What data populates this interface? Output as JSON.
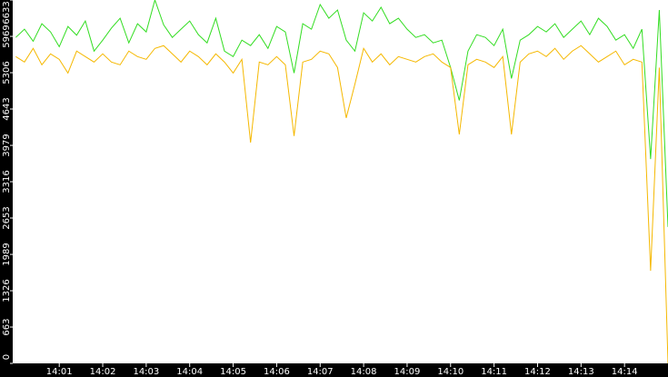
{
  "chart_data": {
    "type": "line",
    "x": [
      0,
      0.2,
      0.4,
      0.6,
      0.8,
      1,
      1.2,
      1.4,
      1.6,
      1.8,
      2,
      2.2,
      2.4,
      2.6,
      2.8,
      3,
      3.2,
      3.4,
      3.6,
      3.8,
      4,
      4.2,
      4.4,
      4.6,
      4.8,
      5,
      5.2,
      5.4,
      5.6,
      5.8,
      6,
      6.2,
      6.4,
      6.6,
      6.8,
      7,
      7.2,
      7.4,
      7.6,
      7.8,
      8,
      8.2,
      8.4,
      8.6,
      8.8,
      9,
      9.2,
      9.4,
      9.6,
      9.8,
      10,
      10.2,
      10.4,
      10.6,
      10.8,
      11,
      11.2,
      11.4,
      11.6,
      11.8,
      12,
      12.2,
      12.4,
      12.6,
      12.8,
      13,
      13.2,
      13.4,
      13.6,
      13.8,
      14,
      14.2,
      14.4,
      14.6,
      14.8,
      15
    ],
    "series": [
      {
        "color": "#33dd22",
        "values": [
          5950,
          6100,
          5880,
          6200,
          6050,
          5780,
          6150,
          5990,
          6250,
          5700,
          5900,
          6120,
          6300,
          5850,
          6200,
          6050,
          6633,
          6180,
          5950,
          6100,
          6250,
          6000,
          5850,
          6300,
          5700,
          5600,
          5900,
          5800,
          6000,
          5750,
          6150,
          6050,
          5300,
          6200,
          6100,
          6550,
          6300,
          6450,
          5900,
          5700,
          6400,
          6250,
          6500,
          6200,
          6300,
          6100,
          5950,
          6000,
          5850,
          5900,
          5400,
          4800,
          5700,
          6000,
          5950,
          5800,
          6100,
          5200,
          5900,
          6000,
          6150,
          6050,
          6200,
          5950,
          6100,
          6250,
          6000,
          6300,
          6150,
          5900,
          6000,
          5750,
          6100,
          3730,
          6450,
          2490
        ]
      },
      {
        "color": "#f5b800",
        "values": [
          5600,
          5500,
          5750,
          5450,
          5650,
          5550,
          5300,
          5700,
          5600,
          5500,
          5650,
          5500,
          5450,
          5700,
          5600,
          5550,
          5750,
          5800,
          5650,
          5500,
          5700,
          5600,
          5450,
          5650,
          5500,
          5300,
          5550,
          4030,
          5500,
          5450,
          5600,
          5450,
          4150,
          5500,
          5550,
          5700,
          5650,
          5400,
          4480,
          5100,
          5750,
          5500,
          5650,
          5450,
          5600,
          5550,
          5500,
          5600,
          5650,
          5500,
          5400,
          4180,
          5450,
          5550,
          5500,
          5400,
          5600,
          4180,
          5500,
          5650,
          5700,
          5600,
          5750,
          5550,
          5700,
          5800,
          5650,
          5500,
          5600,
          5700,
          5450,
          5550,
          5500,
          1690,
          5400,
          0
        ]
      }
    ],
    "xlim": [
      -0.07,
      15.0
    ],
    "xticks": [
      {
        "value": 1,
        "label": "14:01"
      },
      {
        "value": 2,
        "label": "14:02"
      },
      {
        "value": 3,
        "label": "14:03"
      },
      {
        "value": 4,
        "label": "14:04"
      },
      {
        "value": 5,
        "label": "14:05"
      },
      {
        "value": 6,
        "label": "14:06"
      },
      {
        "value": 7,
        "label": "14:07"
      },
      {
        "value": 8,
        "label": "14:08"
      },
      {
        "value": 9,
        "label": "14:09"
      },
      {
        "value": 10,
        "label": "14:10"
      },
      {
        "value": 11,
        "label": "14:11"
      },
      {
        "value": 12,
        "label": "14:12"
      },
      {
        "value": 13,
        "label": "14:13"
      },
      {
        "value": 14,
        "label": "14:14"
      }
    ],
    "ylim": [
      0,
      6633
    ],
    "yticks": [
      0,
      663,
      1326,
      1989,
      2653,
      3316,
      3979,
      4643,
      5306,
      5969,
      6633
    ]
  }
}
